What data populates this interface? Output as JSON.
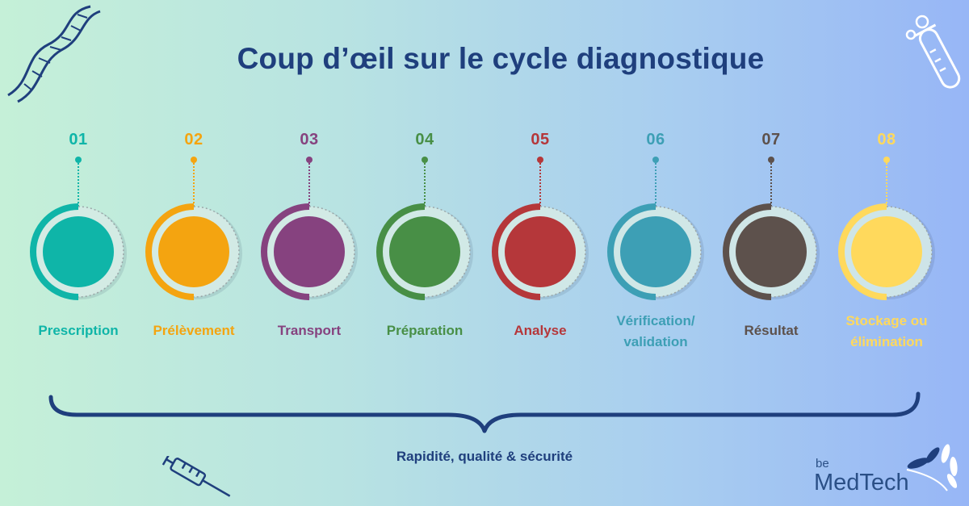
{
  "title": "Coup d’œil sur le cycle diagnostique",
  "steps": [
    {
      "number": "01",
      "label_lines": [
        "Prescription"
      ],
      "color": "#0fb5a8"
    },
    {
      "number": "02",
      "label_lines": [
        "Prélèvement"
      ],
      "color": "#f4a410"
    },
    {
      "number": "03",
      "label_lines": [
        "Transport"
      ],
      "color": "#86427f"
    },
    {
      "number": "04",
      "label_lines": [
        "Préparation"
      ],
      "color": "#488f46"
    },
    {
      "number": "05",
      "label_lines": [
        "Analyse"
      ],
      "color": "#b5373a"
    },
    {
      "number": "06",
      "label_lines": [
        "Vérification/",
        "validation"
      ],
      "color": "#3d9fb5"
    },
    {
      "number": "07",
      "label_lines": [
        "Résultat"
      ],
      "color": "#5d514c"
    },
    {
      "number": "08",
      "label_lines": [
        "Stockage ou",
        "élimination"
      ],
      "color": "#ffd95c"
    }
  ],
  "tagline": "Rapidité, qualité & sécurité",
  "logo": {
    "prefix": "be",
    "name": "MedTech"
  },
  "icons": [
    "dna-icon",
    "test-tube-icon",
    "syringe-icon",
    "leaf-logo-icon"
  ],
  "accent_color": "#1f3f7d"
}
